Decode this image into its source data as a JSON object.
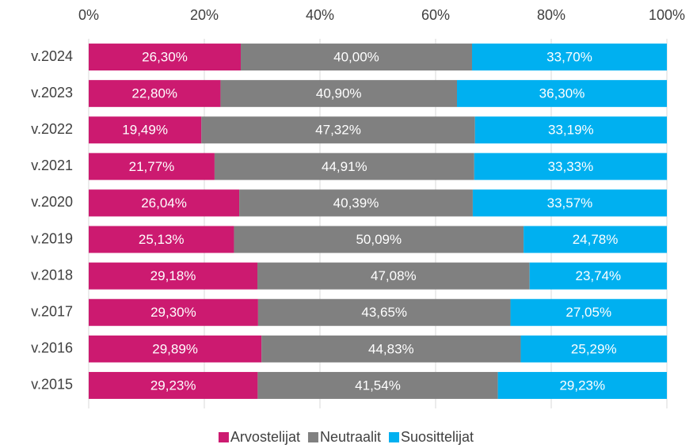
{
  "chart_data": {
    "type": "bar",
    "orientation": "horizontal",
    "stacked": true,
    "categories": [
      "v.2024",
      "v.2023",
      "v.2022",
      "v.2021",
      "v.2020",
      "v.2019",
      "v.2018",
      "v.2017",
      "v.2016",
      "v.2015"
    ],
    "series": [
      {
        "name": "Arvostelijat",
        "color": "#cc1a70",
        "values": [
          26.3,
          22.8,
          19.49,
          21.77,
          26.04,
          25.13,
          29.18,
          29.3,
          29.89,
          29.23
        ],
        "value_labels": [
          "26,30%",
          "22,80%",
          "19,49%",
          "21,77%",
          "26,04%",
          "25,13%",
          "29,18%",
          "29,30%",
          "29,89%",
          "29,23%"
        ]
      },
      {
        "name": "Neutraalit",
        "color": "#808080",
        "values": [
          40.0,
          40.9,
          47.32,
          44.91,
          40.39,
          50.09,
          47.08,
          43.65,
          44.83,
          41.54
        ],
        "value_labels": [
          "40,00%",
          "40,90%",
          "47,32%",
          "44,91%",
          "40,39%",
          "50,09%",
          "47,08%",
          "43,65%",
          "44,83%",
          "41,54%"
        ]
      },
      {
        "name": "Suosittelijat",
        "color": "#00b0f0",
        "values": [
          33.7,
          36.3,
          33.19,
          33.33,
          33.57,
          24.78,
          23.74,
          27.05,
          25.29,
          29.23
        ],
        "value_labels": [
          "33,70%",
          "36,30%",
          "33,19%",
          "33,33%",
          "33,57%",
          "24,78%",
          "23,74%",
          "27,05%",
          "25,29%",
          "29,23%"
        ]
      }
    ],
    "xlim": [
      0,
      100
    ],
    "xticks": [
      {
        "value": 0,
        "label": "0%"
      },
      {
        "value": 20,
        "label": "20%"
      },
      {
        "value": 40,
        "label": "40%"
      },
      {
        "value": 60,
        "label": "60%"
      },
      {
        "value": 80,
        "label": "80%"
      },
      {
        "value": 100,
        "label": "100%"
      }
    ],
    "grid": true,
    "legend": "bottom"
  }
}
